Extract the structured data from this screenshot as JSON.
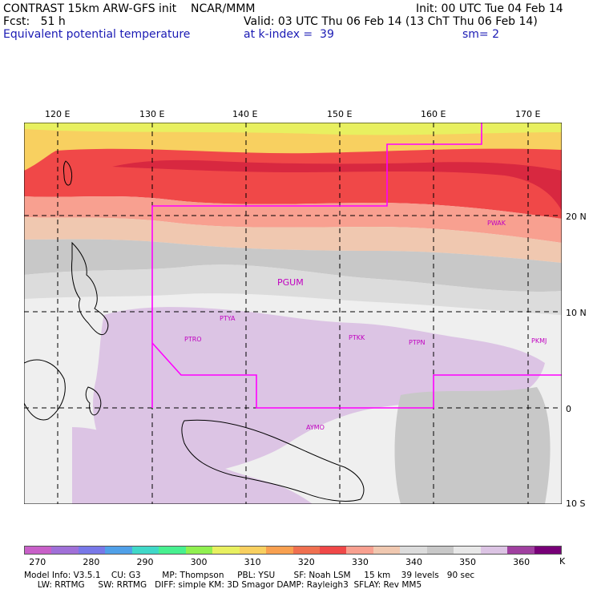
{
  "header": {
    "line1_left": "CONTRAST 15km ARW-GFS init    NCAR/MMM",
    "line1_right": "Init: 00 UTC Tue 04 Feb 14",
    "line2_left": "Fcst:   51 h",
    "line2_right": "Valid: 03 UTC Thu 06 Feb 14 (13 ChT Thu 06 Feb 14)",
    "line3_left": "Equivalent potential temperature",
    "line3_mid": "at k-index =  39",
    "line3_right": "sm= 2"
  },
  "map": {
    "lon_labels": [
      "120 E",
      "130 E",
      "140 E",
      "150 E",
      "160 E",
      "170 E"
    ],
    "lat_labels": [
      "20 N",
      "10 N",
      "0",
      "10 S"
    ],
    "stations": [
      {
        "id": "PWAK",
        "name": "PWAK"
      },
      {
        "id": "PGUM",
        "name": "PGUM"
      },
      {
        "id": "PTYA",
        "name": "PTYA"
      },
      {
        "id": "PTRO",
        "name": "PTRO"
      },
      {
        "id": "PTKK",
        "name": "PTKK"
      },
      {
        "id": "PTPN",
        "name": "PTPN"
      },
      {
        "id": "PKMJ",
        "name": "PKMJ"
      },
      {
        "id": "AYMO",
        "name": "AYMO"
      }
    ],
    "colors": {
      "warm_band": "#f04848",
      "orange": "#f8a050",
      "gray": "#b8b8b8",
      "light": "#efefef",
      "lavender": "#dcc4e4",
      "domain_outline": "#ff00ff"
    }
  },
  "colorbar": {
    "unit": "K",
    "labels": [
      "270",
      "280",
      "290",
      "300",
      "310",
      "320",
      "330",
      "340",
      "350",
      "360"
    ],
    "colors": [
      "#c860c8",
      "#a070d8",
      "#7878e8",
      "#50a0e8",
      "#40d8c8",
      "#48f090",
      "#90f050",
      "#e8f060",
      "#f8d060",
      "#f8a050",
      "#f07050",
      "#f04848",
      "#f8a090",
      "#f0c8b0",
      "#dcdcdc",
      "#c8c8c8",
      "#e8e8e8",
      "#dcc4e4",
      "#a040a0",
      "#780078"
    ]
  },
  "footer": {
    "line1": "Model Info: V3.5.1    CU: G3        MP: Thompson     PBL: YSU       SF: Noah LSM     15 km    39 levels   90 sec",
    "line2": "     LW: RRTMG     SW: RRTMG   DIFF: simple KM: 3D Smagor DAMP: Rayleigh3  SFLAY: Rev MM5"
  }
}
